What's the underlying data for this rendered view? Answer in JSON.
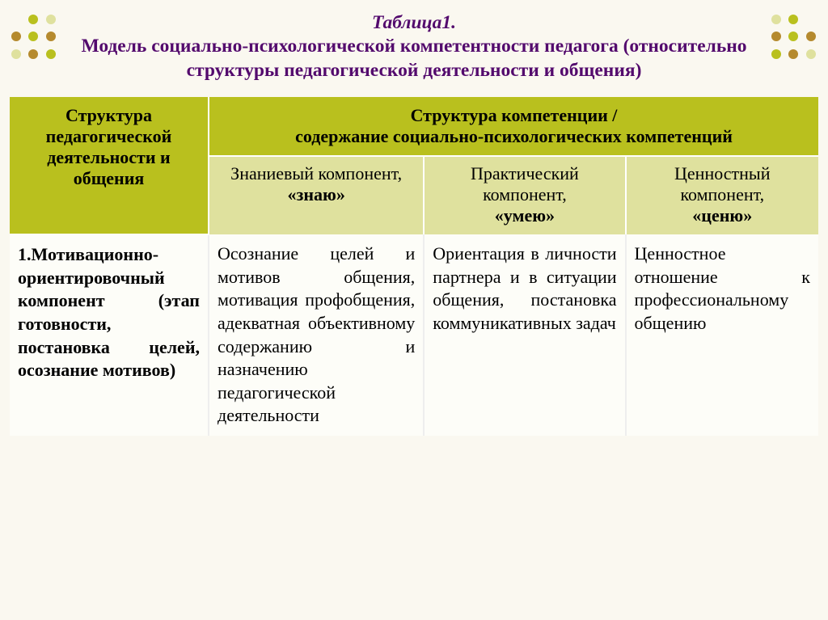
{
  "decoration": {
    "colors_tl": [
      "#faf8f0",
      "#b9c01e",
      "#dfe19e",
      "#b58a2e",
      "#b9c01e",
      "#b58a2e",
      "#dfe19e",
      "#b58a2e",
      "#b9c01e"
    ],
    "colors_tr": [
      "#dfe19e",
      "#b9c01e",
      "#faf8f0",
      "#b58a2e",
      "#b9c01e",
      "#b58a2e",
      "#b9c01e",
      "#b58a2e",
      "#dfe19e"
    ]
  },
  "title": {
    "line1": "Таблица1.",
    "line2": "Модель социально-психологической компетентности педагога (относительно структуры педагогической деятельности и общения)"
  },
  "table": {
    "header_left": "Структура педагогической деятельности и общения",
    "header_right_line1": "Структура компетенции /",
    "header_right_line2": "содержание социально-психологических компетенций",
    "sub1_line1": "Знаниевый компонент,",
    "sub1_line2": "«знаю»",
    "sub2_line1": "Практический компонент,",
    "sub2_line2": "«умею»",
    "sub3_line1": "Ценностный компонент,",
    "sub3_line2": "«ценю»",
    "row1_col1": "1.Мотивационно-ориентировочный компонент (этап готовности, постановка целей, осознание мотивов)",
    "row1_col2": "Осознание целей и мотивов общения, мотивация профобщения, адекватная объективному содержанию и назначению педагогической деятельности",
    "row1_col3": "Ориентация в личности партнера и в ситуации общения, постановка коммуникативных задач",
    "row1_col4": "Ценностное отношение к профессиональному общению"
  }
}
